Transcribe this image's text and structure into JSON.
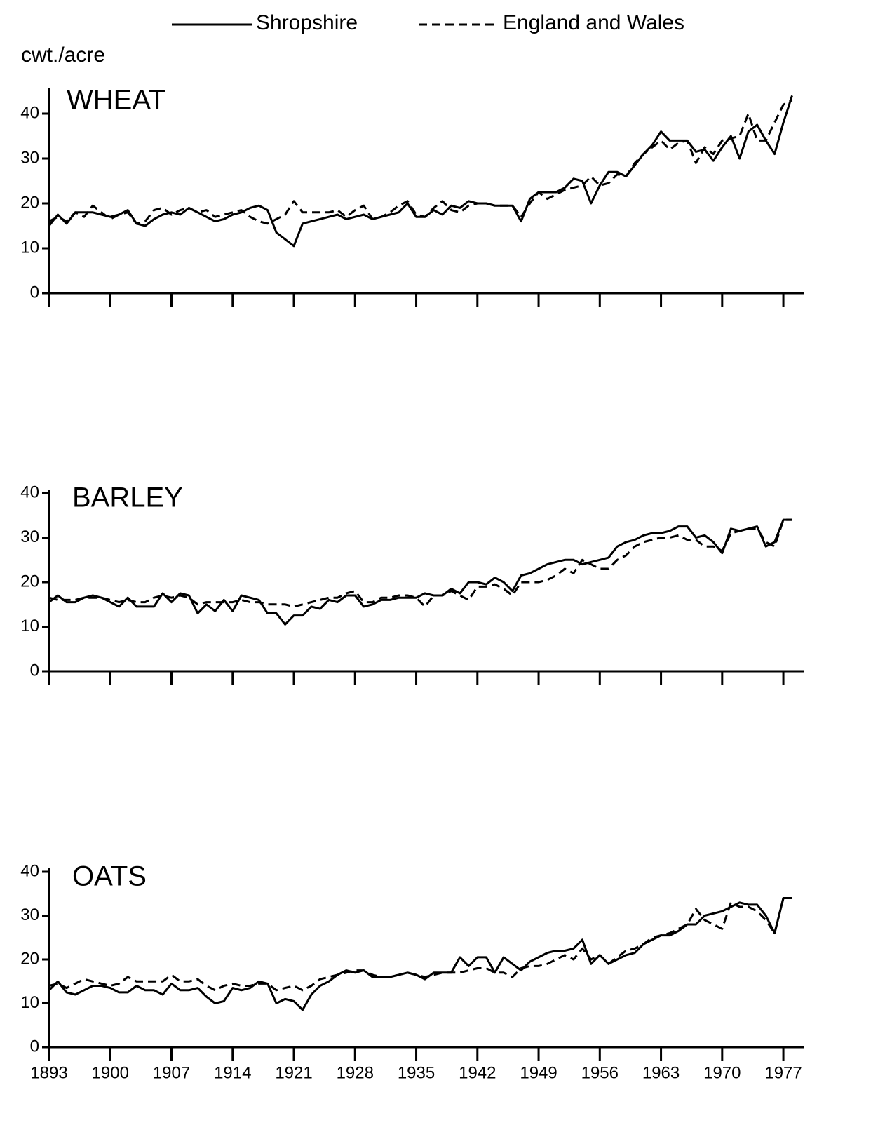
{
  "chart_data": [
    {
      "type": "line",
      "title": "WHEAT",
      "y_label": "cwt./acre",
      "legend": "top",
      "x": [
        1893,
        1894,
        1895,
        1896,
        1897,
        1898,
        1899,
        1900,
        1901,
        1902,
        1903,
        1904,
        1905,
        1906,
        1907,
        1908,
        1909,
        1910,
        1911,
        1912,
        1913,
        1914,
        1915,
        1916,
        1917,
        1918,
        1919,
        1920,
        1921,
        1922,
        1923,
        1924,
        1925,
        1926,
        1927,
        1928,
        1929,
        1930,
        1931,
        1932,
        1933,
        1934,
        1935,
        1936,
        1937,
        1938,
        1939,
        1940,
        1941,
        1942,
        1943,
        1944,
        1945,
        1946,
        1947,
        1948,
        1949,
        1950,
        1951,
        1952,
        1953,
        1954,
        1955,
        1956,
        1957,
        1958,
        1959,
        1960,
        1961,
        1962,
        1963,
        1964,
        1965,
        1966,
        1967,
        1968,
        1969,
        1970,
        1971,
        1972,
        1973,
        1974,
        1975,
        1976,
        1977,
        1978
      ],
      "xlim": [
        1893,
        1979
      ],
      "ylim": [
        0,
        45
      ],
      "yticks": [
        0,
        10,
        20,
        30,
        40
      ],
      "series": [
        {
          "name": "Shropshire",
          "color": "#000000",
          "style": "solid",
          "values": [
            15,
            17.5,
            15.5,
            18,
            18,
            18,
            17.5,
            17,
            17.5,
            18.5,
            15.5,
            15,
            16.5,
            17.5,
            18,
            17.5,
            19,
            18,
            17,
            16,
            16.5,
            17.5,
            18,
            19,
            19.5,
            18.5,
            13.5,
            12,
            10.5,
            15.5,
            16,
            16.5,
            17,
            17.5,
            16.5,
            17,
            17.5,
            16.5,
            17,
            17.5,
            18,
            20,
            17,
            17,
            18.5,
            17.5,
            19.5,
            19,
            20.5,
            20,
            20,
            19.5,
            19.5,
            19.5,
            16,
            21,
            22.5,
            22.5,
            22.5,
            23.5,
            25.5,
            25,
            20,
            24,
            27,
            27,
            26,
            28.5,
            31,
            33,
            36,
            34,
            34,
            34,
            31.5,
            32,
            29.5,
            32.5,
            35,
            30,
            36,
            37.5,
            34,
            31,
            38,
            44
          ]
        },
        {
          "name": "England and Wales",
          "color": "#000000",
          "style": "dashed",
          "values": [
            16,
            17,
            16,
            18,
            17,
            19.5,
            18,
            16.5,
            17.5,
            18,
            15.5,
            16,
            18.5,
            19,
            17.5,
            18.5,
            19,
            18,
            18.5,
            17,
            17.5,
            18,
            18.5,
            17,
            16,
            15.5,
            16.5,
            17.5,
            20.5,
            18,
            18,
            18,
            18,
            18.5,
            17,
            18.5,
            19.5,
            16.5,
            17,
            18,
            19.5,
            20.5,
            17.5,
            17,
            19,
            20.5,
            18.5,
            18,
            19.5,
            20,
            20,
            19.5,
            19.5,
            19.5,
            17,
            20,
            22.5,
            21,
            22,
            23,
            23.5,
            24,
            26,
            24,
            24.5,
            26.5,
            26,
            29,
            31,
            32.5,
            34,
            32,
            33.5,
            34,
            29,
            32.5,
            31,
            34,
            34.5,
            35,
            40,
            34,
            34,
            38,
            42,
            43
          ]
        }
      ]
    },
    {
      "type": "line",
      "title": "BARLEY",
      "x": [
        1893,
        1894,
        1895,
        1896,
        1897,
        1898,
        1899,
        1900,
        1901,
        1902,
        1903,
        1904,
        1905,
        1906,
        1907,
        1908,
        1909,
        1910,
        1911,
        1912,
        1913,
        1914,
        1915,
        1916,
        1917,
        1918,
        1919,
        1920,
        1921,
        1922,
        1923,
        1924,
        1925,
        1926,
        1927,
        1928,
        1929,
        1930,
        1931,
        1932,
        1933,
        1934,
        1935,
        1936,
        1937,
        1938,
        1939,
        1940,
        1941,
        1942,
        1943,
        1944,
        1945,
        1946,
        1947,
        1948,
        1949,
        1950,
        1951,
        1952,
        1953,
        1954,
        1955,
        1956,
        1957,
        1958,
        1959,
        1960,
        1961,
        1962,
        1963,
        1964,
        1965,
        1966,
        1967,
        1968,
        1969,
        1970,
        1971,
        1972,
        1973,
        1974,
        1975,
        1976,
        1977,
        1978
      ],
      "xlim": [
        1893,
        1979
      ],
      "ylim": [
        0,
        40
      ],
      "yticks": [
        0,
        10,
        20,
        30,
        40
      ],
      "series": [
        {
          "name": "Shropshire",
          "color": "#000000",
          "style": "solid",
          "values": [
            15.5,
            17,
            15.5,
            15.5,
            16.5,
            17,
            16.5,
            15.5,
            14.5,
            16.5,
            14.5,
            14.5,
            14.5,
            17.5,
            15.5,
            17.5,
            17,
            13,
            15,
            13.5,
            16,
            13.5,
            17,
            16.5,
            16,
            13,
            13,
            10.5,
            12.5,
            12.5,
            14.5,
            14,
            16,
            15.5,
            17,
            17,
            14.5,
            15,
            16,
            16,
            16.5,
            16.5,
            16.5,
            17.5,
            17,
            17,
            18.5,
            17.5,
            20,
            20,
            19.5,
            21,
            20,
            18,
            21.5,
            22,
            23,
            24,
            24.5,
            25,
            25,
            24,
            24.5,
            25,
            25.5,
            28,
            29,
            29.5,
            30.5,
            31,
            31,
            31.5,
            32.5,
            32.5,
            30,
            30.5,
            29,
            26.5,
            32,
            31.5,
            32,
            32.5,
            28,
            29,
            34,
            34
          ]
        },
        {
          "name": "England and Wales",
          "color": "#000000",
          "style": "dashed",
          "values": [
            16.5,
            16,
            16,
            16,
            16.5,
            16.5,
            16.5,
            16,
            15.5,
            16,
            15.5,
            15.5,
            16.5,
            17,
            16.5,
            17,
            16.5,
            15,
            15.5,
            15.5,
            15.5,
            15.5,
            16,
            15.5,
            15.5,
            15,
            15,
            15,
            14.5,
            15,
            15.5,
            16,
            16.5,
            16.5,
            17.5,
            18,
            15.5,
            15.5,
            16.5,
            16.5,
            17,
            17,
            16.5,
            14.5,
            17,
            17,
            18,
            17,
            16,
            19,
            19,
            19.5,
            18.5,
            17,
            20,
            20,
            20,
            20.5,
            21.5,
            23,
            22,
            25,
            24,
            23,
            23,
            25,
            26,
            28,
            29,
            29.5,
            30,
            30,
            30.5,
            29.5,
            29.5,
            28,
            28,
            27,
            31,
            31.5,
            32,
            32,
            29,
            28,
            34,
            34
          ]
        }
      ]
    },
    {
      "type": "line",
      "title": "OATS",
      "x": [
        1893,
        1894,
        1895,
        1896,
        1897,
        1898,
        1899,
        1900,
        1901,
        1902,
        1903,
        1904,
        1905,
        1906,
        1907,
        1908,
        1909,
        1910,
        1911,
        1912,
        1913,
        1914,
        1915,
        1916,
        1917,
        1918,
        1919,
        1920,
        1921,
        1922,
        1923,
        1924,
        1925,
        1926,
        1927,
        1928,
        1929,
        1930,
        1931,
        1932,
        1933,
        1934,
        1935,
        1936,
        1937,
        1938,
        1939,
        1940,
        1941,
        1942,
        1943,
        1944,
        1945,
        1946,
        1947,
        1948,
        1949,
        1950,
        1951,
        1952,
        1953,
        1954,
        1955,
        1956,
        1957,
        1958,
        1959,
        1960,
        1961,
        1962,
        1963,
        1964,
        1965,
        1966,
        1967,
        1968,
        1969,
        1970,
        1971,
        1972,
        1973,
        1974,
        1975,
        1976,
        1977,
        1978
      ],
      "xlim": [
        1893,
        1979
      ],
      "xticks": [
        1893,
        1900,
        1907,
        1914,
        1921,
        1928,
        1935,
        1942,
        1949,
        1956,
        1963,
        1970,
        1977
      ],
      "ylim": [
        0,
        40
      ],
      "yticks": [
        0,
        10,
        20,
        30,
        40
      ],
      "series": [
        {
          "name": "Shropshire",
          "color": "#000000",
          "style": "solid",
          "values": [
            13,
            15,
            12.5,
            12,
            13,
            14,
            14,
            13.5,
            12.5,
            12.5,
            14,
            13,
            13,
            12,
            14.5,
            13,
            13,
            13.5,
            11.5,
            10,
            10.5,
            13.5,
            13,
            13.5,
            15,
            14.5,
            10,
            11,
            10.5,
            8.5,
            12,
            14,
            15,
            16.5,
            17.5,
            17,
            17.5,
            16,
            16,
            16,
            16.5,
            17,
            16.5,
            15.5,
            17,
            17,
            17,
            20.5,
            18.5,
            20.5,
            20.5,
            17,
            20.5,
            19,
            17.5,
            19.5,
            20.5,
            21.5,
            22,
            22,
            22.5,
            24.5,
            19,
            21,
            19,
            20,
            21,
            21.5,
            23.5,
            24.5,
            25.5,
            25.5,
            26.5,
            28,
            28,
            30,
            30.5,
            31,
            32,
            33,
            32.5,
            32.5,
            30,
            26,
            34,
            34
          ]
        },
        {
          "name": "England and Wales",
          "color": "#000000",
          "style": "dashed",
          "values": [
            14,
            14.5,
            13.5,
            14.5,
            15.5,
            15,
            14.5,
            14,
            14.5,
            16,
            15,
            15,
            15,
            15,
            16.5,
            15,
            15,
            15.5,
            14,
            13,
            14,
            14.5,
            14,
            14,
            14.5,
            14.5,
            13,
            13.5,
            14,
            13,
            14,
            15.5,
            16,
            16.5,
            17,
            17.5,
            17.5,
            16.5,
            16,
            16,
            16.5,
            17,
            16.5,
            16,
            16.5,
            17,
            17,
            17,
            17.5,
            18,
            18,
            17,
            17,
            16,
            18,
            18.5,
            18.5,
            19,
            20,
            21,
            20,
            22.5,
            20,
            21,
            19,
            20.5,
            22,
            22.5,
            23.5,
            25,
            25.5,
            26,
            27,
            28,
            31.5,
            29,
            28,
            27,
            33,
            32,
            32,
            31,
            29,
            26,
            34,
            34
          ]
        }
      ]
    }
  ]
}
